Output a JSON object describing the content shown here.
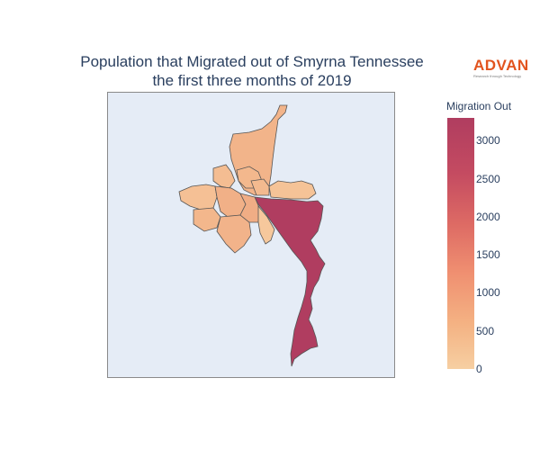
{
  "title": {
    "line1": "Population that Migrated out of Smyrna Tennessee",
    "line2": "the first three months of 2019"
  },
  "logo": {
    "word": "ADVAN",
    "tagline": "Research through Technology"
  },
  "legend": {
    "title": "Migration Out",
    "min": 0,
    "max": 3300,
    "ticks": [
      "0",
      "500",
      "1000",
      "1500",
      "2000",
      "2500",
      "3000"
    ],
    "colors": [
      "#f6cfa2",
      "#f4b283",
      "#f09071",
      "#dd6a64",
      "#c44b61",
      "#b03d60"
    ]
  },
  "map": {
    "background": "#e5ecf6",
    "border_color": "#555555",
    "highlight_color": "#b03d60",
    "base_color": "#f2b58c"
  }
}
